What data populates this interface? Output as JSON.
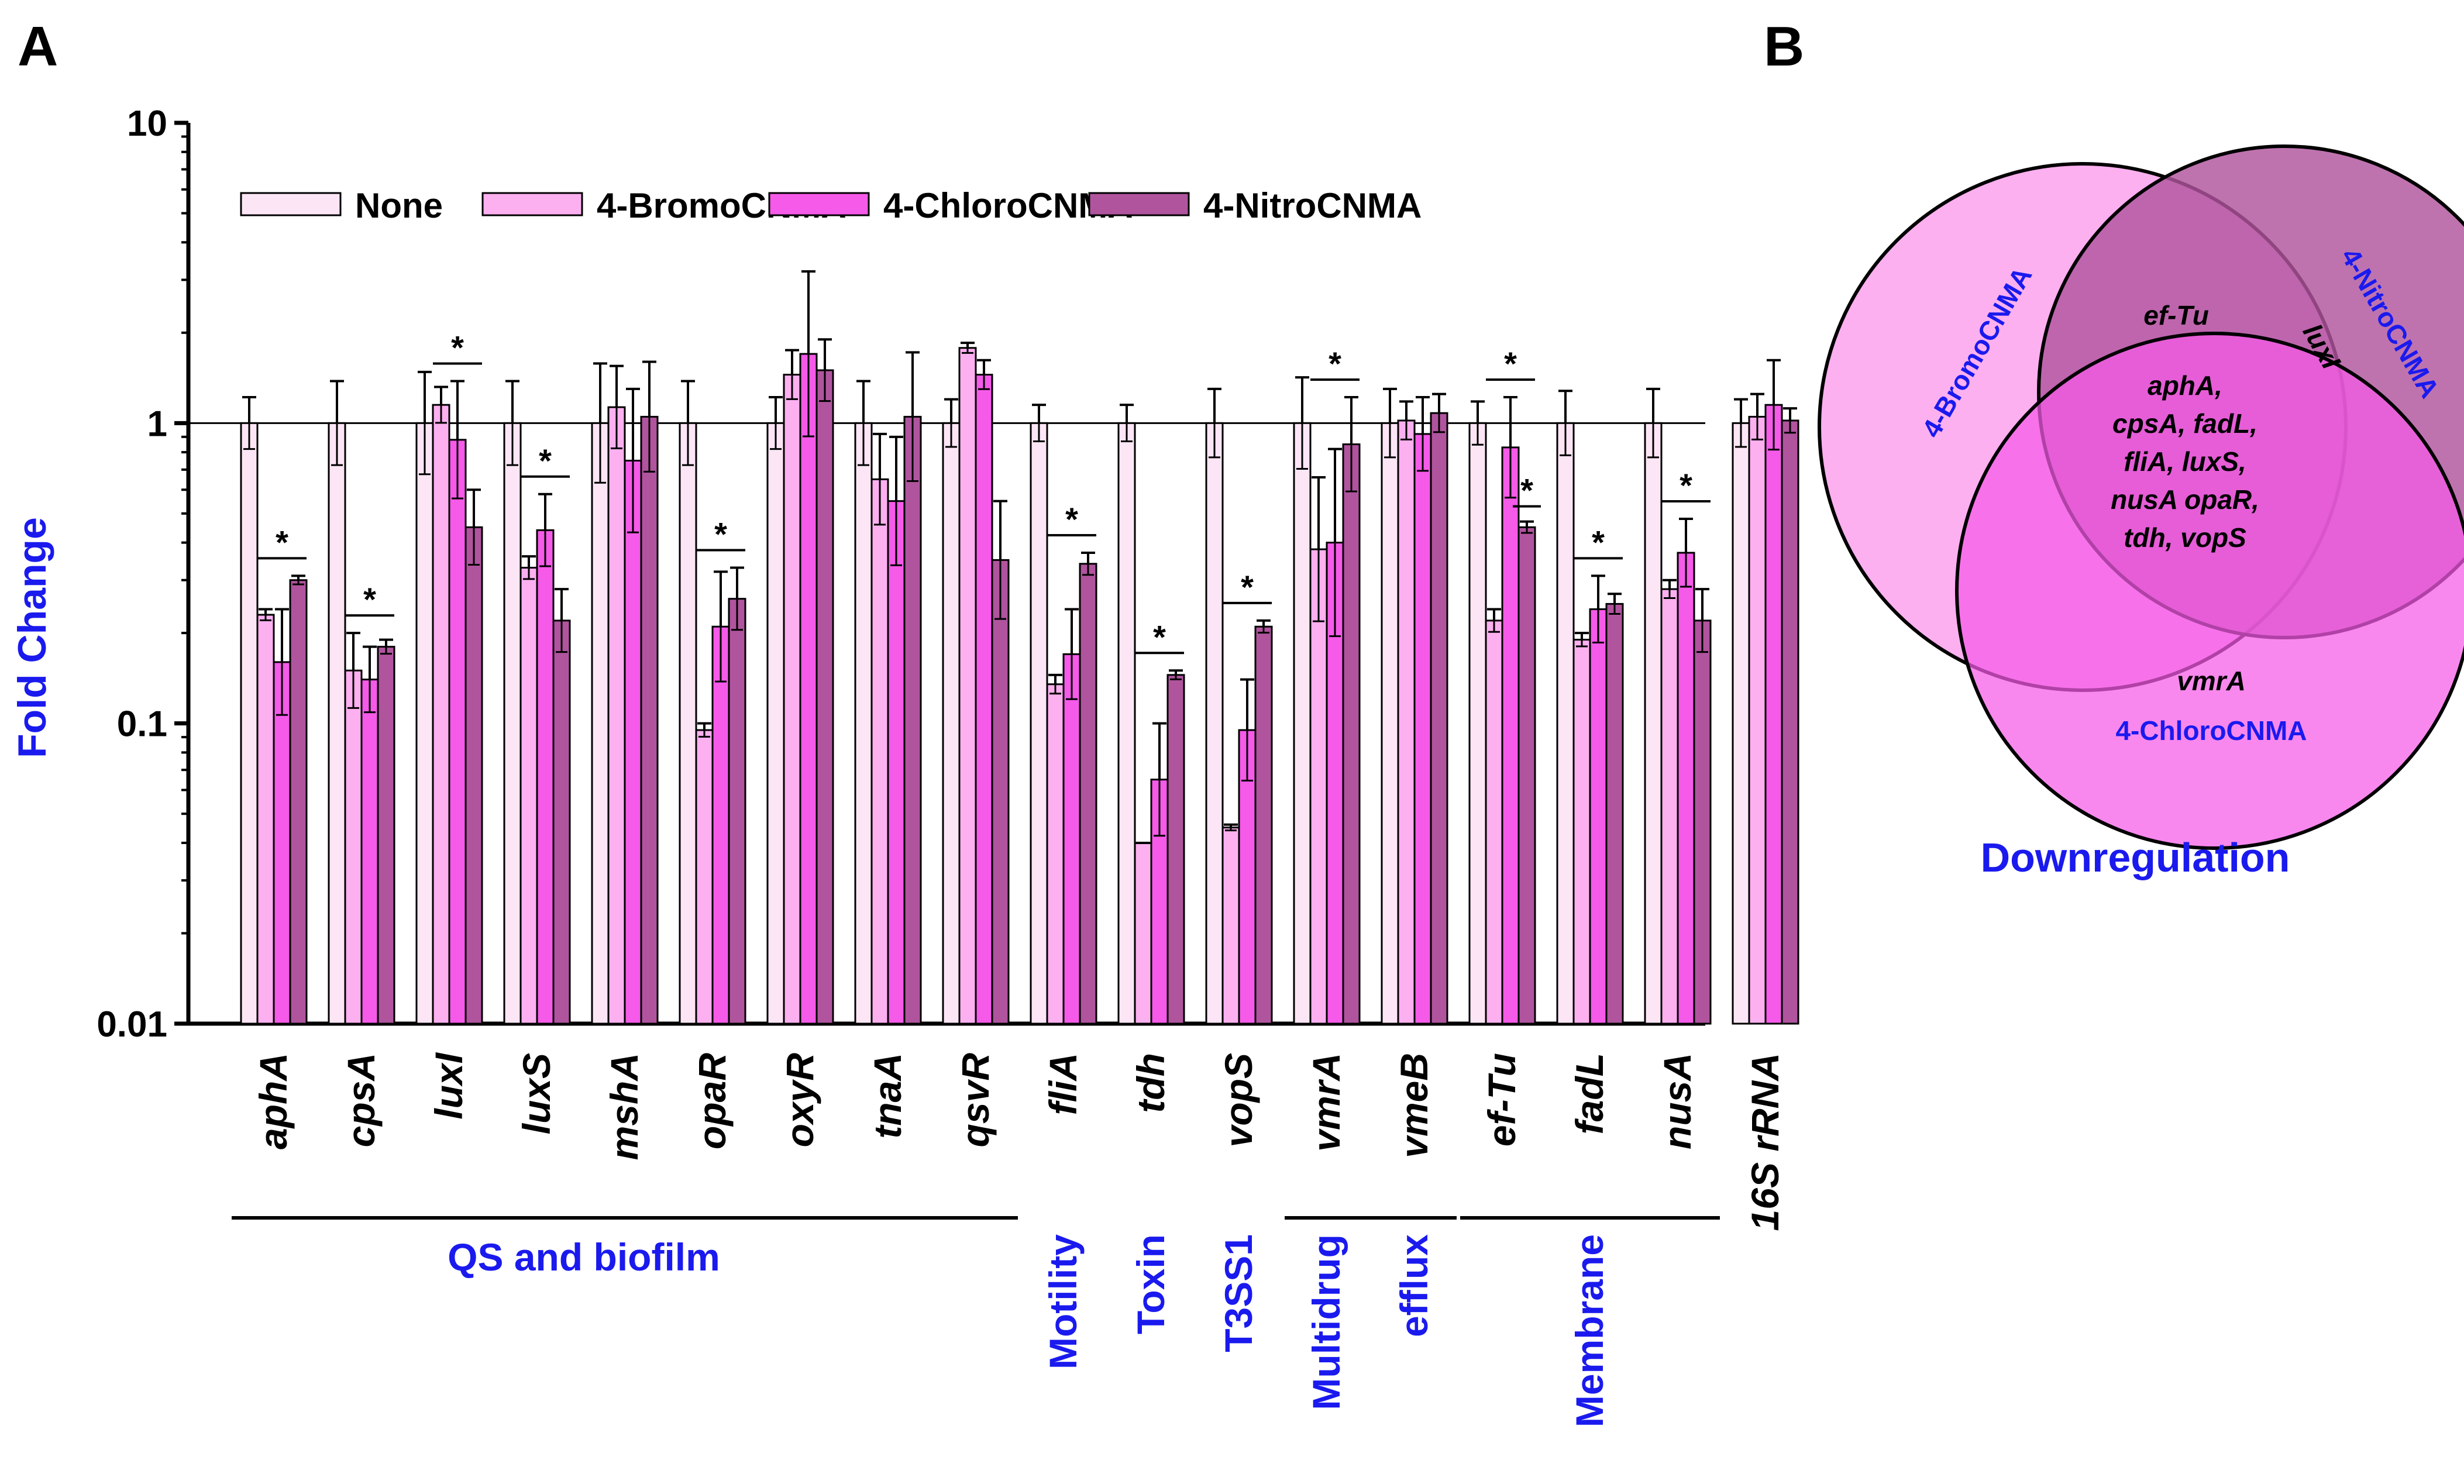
{
  "panels": {
    "a": "A",
    "b": "B"
  },
  "chart_data": [
    {
      "type": "bar",
      "ylabel": "Fold Change",
      "xlabel": "",
      "yscale": "log",
      "ylim": [
        0.01,
        10
      ],
      "yticks": [
        "0.01",
        "0.1",
        "1",
        "10"
      ],
      "reference_line": 1,
      "categories": [
        "aphA",
        "cpsA",
        "luxI",
        "luxS",
        "mshA",
        "opaR",
        "oxyR",
        "tnaA",
        "qsvR",
        "fliA",
        "tdh",
        "vopS",
        "vmrA",
        "vmeB",
        "ef-Tu",
        "fadL",
        "nusA",
        "16S rRNA"
      ],
      "series": [
        {
          "name": "None",
          "color": "#fce6f6",
          "values": [
            1,
            1,
            1,
            1,
            1,
            1,
            1,
            1,
            1,
            1,
            1,
            1,
            1,
            1,
            1,
            1,
            1,
            1
          ],
          "err": [
            1.22,
            1.38,
            1.48,
            1.38,
            1.58,
            1.38,
            1.22,
            1.38,
            1.2,
            1.15,
            1.15,
            1.3,
            1.42,
            1.3,
            1.18,
            1.28,
            1.3,
            1.2
          ]
        },
        {
          "name": "4-BromoCNMA",
          "color": "#fcb0f0",
          "values": [
            0.23,
            0.15,
            1.15,
            0.33,
            1.13,
            0.095,
            1.45,
            0.65,
            1.78,
            0.135,
            0.04,
            0.045,
            0.38,
            1.02,
            0.22,
            0.19,
            0.28,
            1.05
          ],
          "err": [
            0.24,
            0.2,
            1.32,
            0.36,
            1.55,
            0.1,
            1.75,
            0.92,
            1.85,
            0.145,
            0.04,
            0.046,
            0.66,
            1.18,
            0.24,
            0.2,
            0.3,
            1.25
          ]
        },
        {
          "name": "4-ChloroCNMA",
          "color": "#f55ae8",
          "values": [
            0.16,
            0.14,
            0.88,
            0.44,
            0.75,
            0.21,
            1.7,
            0.55,
            1.45,
            0.17,
            0.065,
            0.095,
            0.4,
            0.92,
            0.83,
            0.24,
            0.37,
            1.15
          ],
          "err": [
            0.24,
            0.18,
            1.38,
            0.58,
            1.3,
            0.32,
            3.2,
            0.9,
            1.62,
            0.24,
            0.1,
            0.14,
            0.82,
            1.22,
            1.22,
            0.31,
            0.48,
            1.62
          ]
        },
        {
          "name": "4-NitroCNMA",
          "color": "#b0549e",
          "values": [
            0.3,
            0.18,
            0.45,
            0.22,
            1.05,
            0.26,
            1.5,
            1.05,
            0.35,
            0.34,
            0.145,
            0.21,
            0.85,
            1.08,
            0.45,
            0.25,
            0.22,
            1.02
          ],
          "err": [
            0.31,
            0.19,
            0.6,
            0.28,
            1.6,
            0.33,
            1.9,
            1.72,
            0.55,
            0.37,
            0.15,
            0.22,
            1.22,
            1.25,
            0.47,
            0.27,
            0.28,
            1.12
          ]
        }
      ],
      "significance": [
        {
          "category": "aphA",
          "label": "*"
        },
        {
          "category": "cpsA",
          "label": "*"
        },
        {
          "category": "luxI",
          "label": "*"
        },
        {
          "category": "luxS",
          "label": "*"
        },
        {
          "category": "opaR",
          "label": "*"
        },
        {
          "category": "fliA",
          "label": "*"
        },
        {
          "category": "tdh",
          "label": "*"
        },
        {
          "category": "vopS",
          "label": "*"
        },
        {
          "category": "vmrA",
          "label": "*"
        },
        {
          "category": "ef-Tu",
          "label": "*"
        },
        {
          "category": "ef-Tu",
          "label": "*"
        },
        {
          "category": "fadL",
          "label": "*"
        },
        {
          "category": "nusA",
          "label": "*"
        }
      ],
      "groups": [
        {
          "label": "QS and biofilm",
          "from": "aphA",
          "to": "qsvR"
        },
        {
          "label": "Motility",
          "from": "fliA",
          "to": "fliA"
        },
        {
          "label": "Toxin",
          "from": "tdh",
          "to": "tdh"
        },
        {
          "label": "T3SS1",
          "from": "vopS",
          "to": "vopS"
        },
        {
          "label": "Multidrug",
          "label2": "efflux",
          "from": "vmrA",
          "to": "vmeB"
        },
        {
          "label": "Membrane",
          "from": "ef-Tu",
          "to": "nusA"
        }
      ],
      "legend_position": "top"
    },
    {
      "type": "venn",
      "title": "Downregulation",
      "sets": [
        {
          "name": "4-BromoCNMA",
          "color": "#fcb0f0"
        },
        {
          "name": "4-NitroCNMA",
          "color": "#b0549e"
        },
        {
          "name": "4-ChloroCNMA",
          "color": "#f55ae8"
        }
      ],
      "regions": [
        {
          "sets": [
            "4-BromoCNMA",
            "4-NitroCNMA"
          ],
          "genes": [
            "ef-Tu"
          ]
        },
        {
          "sets": [
            "4-NitroCNMA"
          ],
          "genes": [
            "luxI"
          ]
        },
        {
          "sets": [
            "4-BromoCNMA",
            "4-NitroCNMA",
            "4-ChloroCNMA"
          ],
          "genes": [
            "aphA,",
            "cpsA, fadL,",
            "fliA, luxS,",
            "nusA opaR,",
            "tdh, vopS"
          ]
        },
        {
          "sets": [
            "4-ChloroCNMA"
          ],
          "genes": [
            "vmrA"
          ]
        }
      ]
    }
  ]
}
